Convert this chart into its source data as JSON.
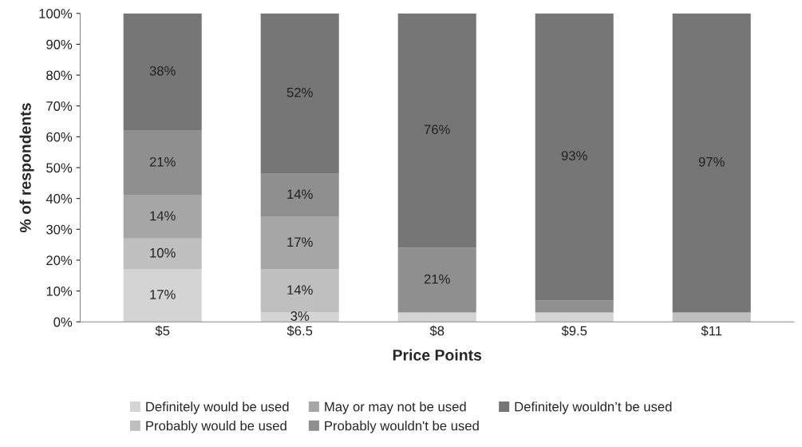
{
  "chart_data": {
    "type": "bar",
    "stacked": true,
    "xlabel": "Price Points",
    "ylabel": "% of respondents",
    "categories": [
      "$5",
      "$6.5",
      "$8",
      "$9.5",
      "$11"
    ],
    "series": [
      {
        "name": "Definitely would be used",
        "color": "#d4d4d4",
        "values": [
          17,
          3,
          3,
          3,
          0
        ],
        "value_labels": [
          "17%",
          "3%",
          null,
          null,
          null
        ]
      },
      {
        "name": "Probably would be used",
        "color": "#bfbfbf",
        "values": [
          10,
          14,
          0,
          0,
          3
        ],
        "value_labels": [
          "10%",
          "14%",
          null,
          null,
          null
        ]
      },
      {
        "name": "May or may not be used",
        "color": "#a6a6a6",
        "values": [
          14,
          17,
          0,
          0,
          0
        ],
        "value_labels": [
          "14%",
          "17%",
          null,
          null,
          null
        ]
      },
      {
        "name": "Probably wouldn't be used",
        "color": "#8f8f8f",
        "values": [
          21,
          14,
          21,
          4,
          0
        ],
        "value_labels": [
          "21%",
          "14%",
          "21%",
          null,
          null
        ]
      },
      {
        "name": "Definitely wouldn’t be used",
        "color": "#767676",
        "values": [
          38,
          52,
          76,
          93,
          97
        ],
        "value_labels": [
          "38%",
          "52%",
          "76%",
          "93%",
          "97%"
        ]
      }
    ],
    "ylim": [
      0,
      100
    ],
    "yticks": [
      {
        "value": 0,
        "label": "0%"
      },
      {
        "value": 10,
        "label": "10%"
      },
      {
        "value": 20,
        "label": "20%"
      },
      {
        "value": 30,
        "label": "30%"
      },
      {
        "value": 40,
        "label": "40%"
      },
      {
        "value": 50,
        "label": "50%"
      },
      {
        "value": 60,
        "label": "60%"
      },
      {
        "value": 70,
        "label": "70%"
      },
      {
        "value": 80,
        "label": "80%"
      },
      {
        "value": 90,
        "label": "90%"
      },
      {
        "value": 100,
        "label": "100%"
      }
    ],
    "grid": false,
    "legend": "bottom"
  }
}
